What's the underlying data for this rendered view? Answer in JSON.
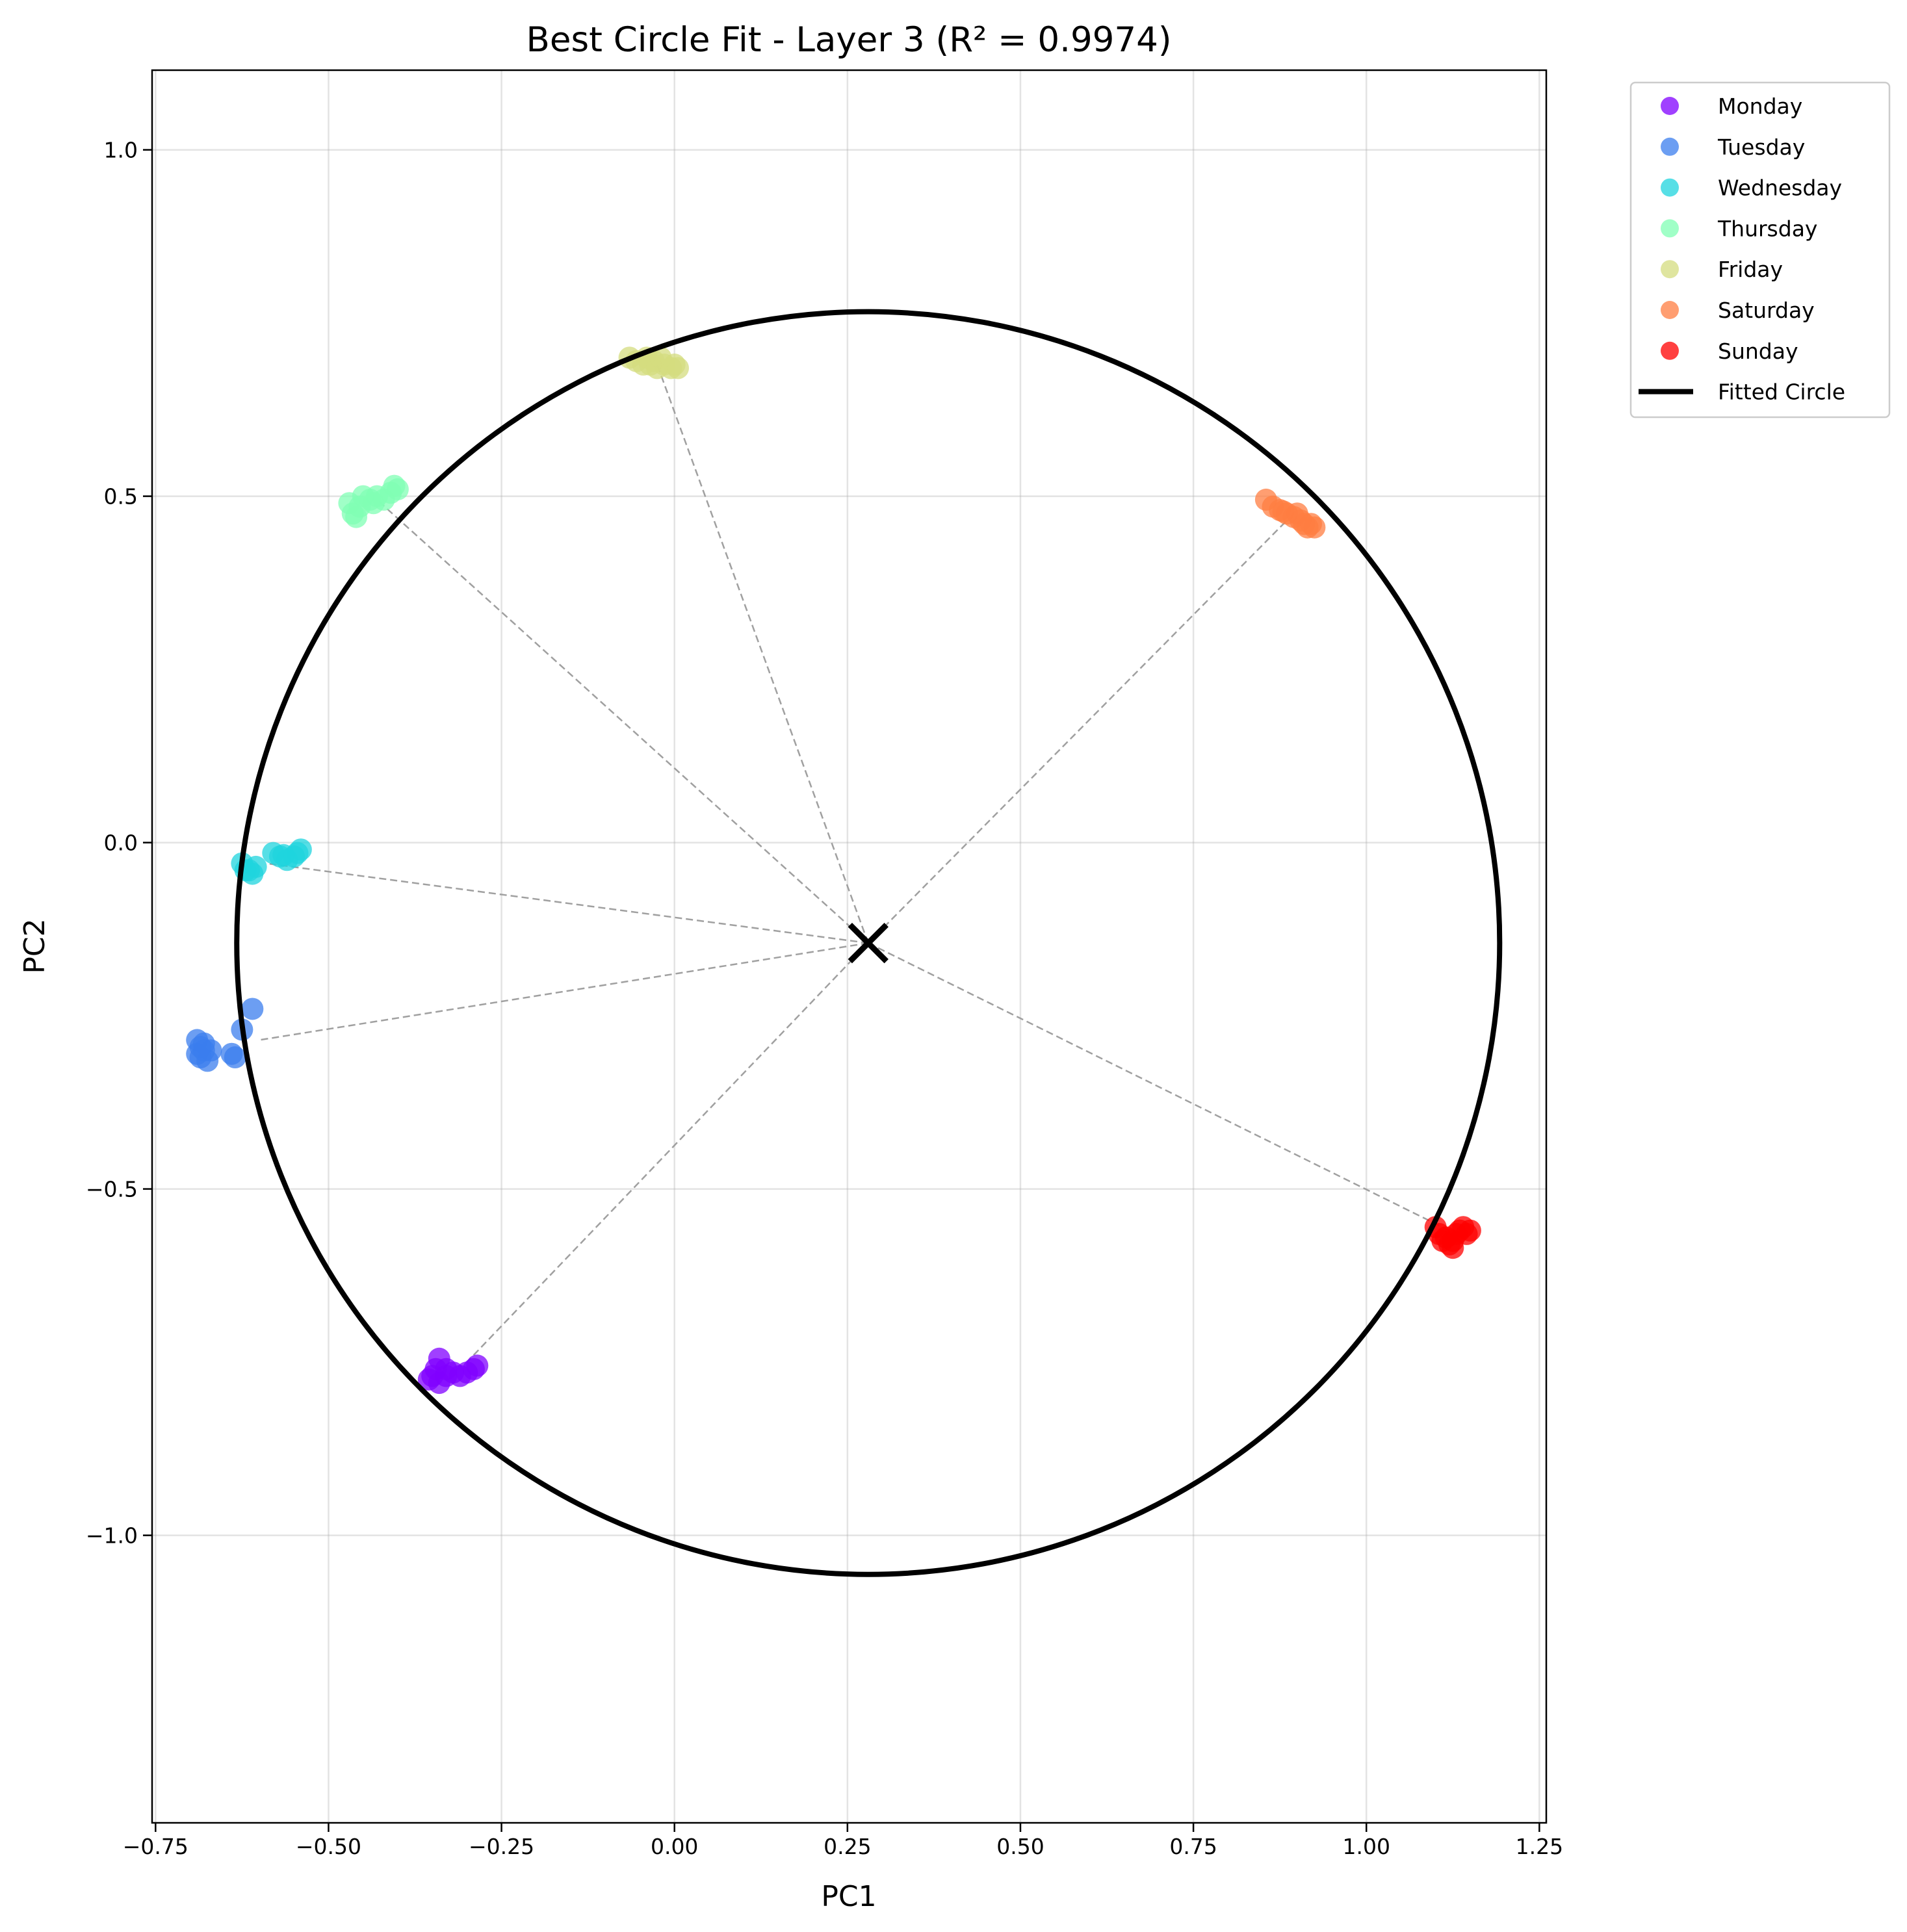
{
  "chart_data": {
    "type": "scatter",
    "title": "Best Circle Fit - Layer 3 (R² = 0.9974)",
    "xlabel": "PC1",
    "ylabel": "PC2",
    "xlim": [
      -0.755,
      1.26
    ],
    "ylim": [
      -1.415,
      1.115
    ],
    "xticks": [
      {
        "value": -0.75,
        "label": "−0.75"
      },
      {
        "value": -0.5,
        "label": "−0.50"
      },
      {
        "value": -0.25,
        "label": "−0.25"
      },
      {
        "value": 0.0,
        "label": "0.00"
      },
      {
        "value": 0.25,
        "label": "0.25"
      },
      {
        "value": 0.5,
        "label": "0.50"
      },
      {
        "value": 0.75,
        "label": "0.75"
      },
      {
        "value": 1.0,
        "label": "1.00"
      },
      {
        "value": 1.25,
        "label": "1.25"
      }
    ],
    "yticks": [
      {
        "value": 1.0,
        "label": "1.0"
      },
      {
        "value": 0.5,
        "label": "0.5"
      },
      {
        "value": 0.0,
        "label": "0.0"
      },
      {
        "value": -0.5,
        "label": "−0.5"
      },
      {
        "value": -1.0,
        "label": "−1.0"
      }
    ],
    "grid": true,
    "legend_position": "outside top-right",
    "circle": {
      "label": "Fitted Circle",
      "center": [
        0.28,
        -0.145
      ],
      "radius": 0.912,
      "color": "#000000"
    },
    "series": [
      {
        "name": "Monday",
        "color": "#8000ff",
        "centroid": [
          -0.3,
          -0.75
        ],
        "points": [
          [
            -0.34,
            -0.745
          ],
          [
            -0.345,
            -0.76
          ],
          [
            -0.33,
            -0.77
          ],
          [
            -0.355,
            -0.775
          ],
          [
            -0.34,
            -0.78
          ],
          [
            -0.32,
            -0.765
          ],
          [
            -0.31,
            -0.77
          ],
          [
            -0.3,
            -0.765
          ],
          [
            -0.29,
            -0.76
          ],
          [
            -0.285,
            -0.755
          ],
          [
            -0.33,
            -0.76
          ],
          [
            -0.35,
            -0.77
          ]
        ]
      },
      {
        "name": "Tuesday",
        "color": "#3b7ded",
        "centroid": [
          -0.6,
          -0.285
        ],
        "points": [
          [
            -0.61,
            -0.24
          ],
          [
            -0.625,
            -0.27
          ],
          [
            -0.635,
            -0.31
          ],
          [
            -0.64,
            -0.305
          ],
          [
            -0.68,
            -0.3
          ],
          [
            -0.685,
            -0.31
          ],
          [
            -0.69,
            -0.305
          ],
          [
            -0.675,
            -0.315
          ],
          [
            -0.67,
            -0.3
          ],
          [
            -0.69,
            -0.285
          ],
          [
            -0.68,
            -0.29
          ],
          [
            -0.685,
            -0.295
          ]
        ]
      },
      {
        "name": "Wednesday",
        "color": "#1fd4de",
        "centroid": [
          -0.59,
          -0.03
        ],
        "points": [
          [
            -0.625,
            -0.03
          ],
          [
            -0.62,
            -0.04
          ],
          [
            -0.61,
            -0.045
          ],
          [
            -0.605,
            -0.035
          ],
          [
            -0.58,
            -0.015
          ],
          [
            -0.57,
            -0.02
          ],
          [
            -0.56,
            -0.025
          ],
          [
            -0.55,
            -0.02
          ],
          [
            -0.545,
            -0.015
          ],
          [
            -0.54,
            -0.01
          ],
          [
            -0.615,
            -0.04
          ],
          [
            -0.565,
            -0.018
          ]
        ]
      },
      {
        "name": "Thursday",
        "color": "#80ffb4",
        "centroid": [
          -0.43,
          0.495
        ],
        "points": [
          [
            -0.47,
            0.49
          ],
          [
            -0.465,
            0.475
          ],
          [
            -0.46,
            0.47
          ],
          [
            -0.45,
            0.5
          ],
          [
            -0.44,
            0.495
          ],
          [
            -0.43,
            0.5
          ],
          [
            -0.42,
            0.495
          ],
          [
            -0.41,
            0.505
          ],
          [
            -0.405,
            0.515
          ],
          [
            -0.4,
            0.51
          ],
          [
            -0.455,
            0.485
          ],
          [
            -0.435,
            0.49
          ]
        ]
      },
      {
        "name": "Friday",
        "color": "#d4dc7f",
        "centroid": [
          -0.025,
          0.69
        ],
        "points": [
          [
            -0.065,
            0.7
          ],
          [
            -0.055,
            0.695
          ],
          [
            -0.045,
            0.69
          ],
          [
            -0.04,
            0.7
          ],
          [
            -0.03,
            0.695
          ],
          [
            -0.025,
            0.685
          ],
          [
            -0.015,
            0.69
          ],
          [
            -0.005,
            0.685
          ],
          [
            0.005,
            0.685
          ],
          [
            -0.02,
            0.7
          ],
          [
            -0.035,
            0.69
          ],
          [
            0.0,
            0.69
          ]
        ]
      },
      {
        "name": "Saturday",
        "color": "#ff7e41",
        "centroid": [
          0.89,
          0.47
        ],
        "points": [
          [
            0.855,
            0.495
          ],
          [
            0.865,
            0.485
          ],
          [
            0.875,
            0.48
          ],
          [
            0.885,
            0.475
          ],
          [
            0.895,
            0.47
          ],
          [
            0.9,
            0.475
          ],
          [
            0.905,
            0.465
          ],
          [
            0.91,
            0.46
          ],
          [
            0.915,
            0.455
          ],
          [
            0.92,
            0.46
          ],
          [
            0.925,
            0.455
          ],
          [
            0.88,
            0.478
          ]
        ]
      },
      {
        "name": "Sunday",
        "color": "#ff0000",
        "centroid": [
          1.14,
          -0.57
        ],
        "points": [
          [
            1.1,
            -0.555
          ],
          [
            1.105,
            -0.565
          ],
          [
            1.11,
            -0.575
          ],
          [
            1.115,
            -0.57
          ],
          [
            1.12,
            -0.58
          ],
          [
            1.125,
            -0.575
          ],
          [
            1.13,
            -0.565
          ],
          [
            1.135,
            -0.56
          ],
          [
            1.14,
            -0.555
          ],
          [
            1.145,
            -0.565
          ],
          [
            1.15,
            -0.56
          ],
          [
            1.125,
            -0.585
          ]
        ]
      }
    ]
  }
}
